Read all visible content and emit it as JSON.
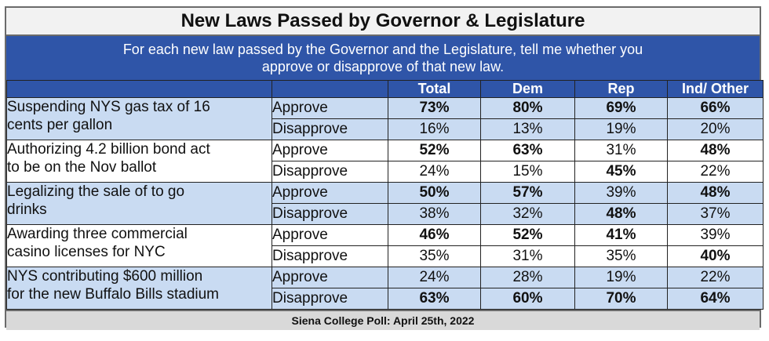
{
  "title": "New Laws Passed by Governor & Legislature",
  "subtitle_line1": "For each new law passed by the Governor and the Legislature, tell me whether you",
  "subtitle_line2": "approve or disapprove of that new law.",
  "columns": [
    "Total",
    "Dem",
    "Rep",
    "Ind/ Other"
  ],
  "rows": [
    {
      "law_line1": "Suspending NYS gas tax of 16",
      "law_line2": "cents per gallon",
      "approve": {
        "label": "Approve",
        "values": [
          "73%",
          "80%",
          "69%",
          "66%"
        ]
      },
      "disapprove": {
        "label": "Disapprove",
        "values": [
          "16%",
          "13%",
          "19%",
          "20%"
        ]
      }
    },
    {
      "law_line1": "Authorizing 4.2 billion bond act",
      "law_line2": "to be on the Nov ballot",
      "approve": {
        "label": "Approve",
        "values": [
          "52%",
          "63%",
          "31%",
          "48%"
        ]
      },
      "disapprove": {
        "label": "Disapprove",
        "values": [
          "24%",
          "15%",
          "45%",
          "22%"
        ]
      }
    },
    {
      "law_line1": "Legalizing the sale of to go",
      "law_line2": "drinks",
      "approve": {
        "label": "Approve",
        "values": [
          "50%",
          "57%",
          "39%",
          "48%"
        ]
      },
      "disapprove": {
        "label": "Disapprove",
        "values": [
          "38%",
          "32%",
          "48%",
          "37%"
        ]
      }
    },
    {
      "law_line1": "Awarding three commercial",
      "law_line2": "casino licenses for NYC",
      "approve": {
        "label": "Approve",
        "values": [
          "46%",
          "52%",
          "41%",
          "39%"
        ]
      },
      "disapprove": {
        "label": "Disapprove",
        "values": [
          "35%",
          "31%",
          "35%",
          "40%"
        ]
      }
    },
    {
      "law_line1": "NYS contributing $600 million",
      "law_line2": "for the new Buffalo Bills stadium",
      "approve": {
        "label": "Approve",
        "values": [
          "24%",
          "28%",
          "19%",
          "22%"
        ]
      },
      "disapprove": {
        "label": "Disapprove",
        "values": [
          "63%",
          "60%",
          "70%",
          "64%"
        ]
      }
    }
  ],
  "footer": "Siena College Poll: April 25th, 2022"
}
